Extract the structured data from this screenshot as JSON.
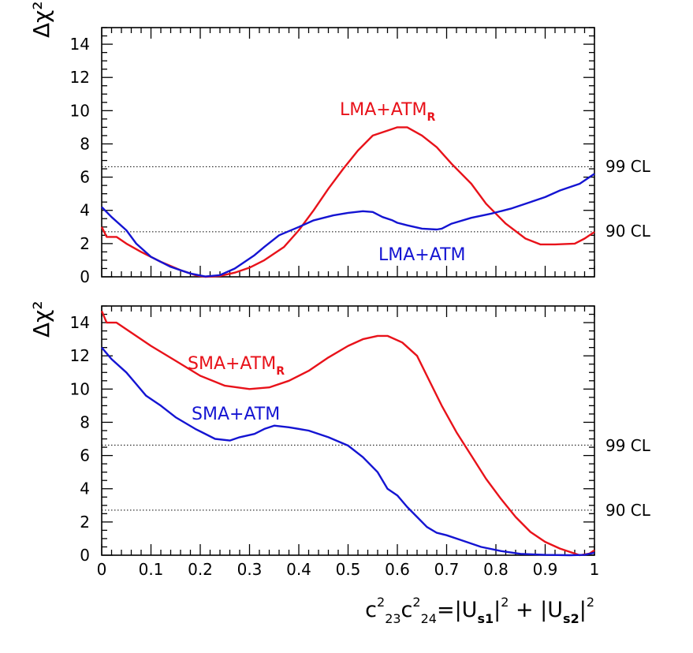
{
  "chart_data": [
    {
      "type": "line",
      "ylabel": "Δχ²",
      "xlim": [
        0,
        1
      ],
      "ylim": [
        0,
        15
      ],
      "y_ticks": [
        "0",
        "2",
        "4",
        "6",
        "8",
        "10",
        "12",
        "14"
      ],
      "reference_lines": [
        {
          "label": "99 CL",
          "y": 6.63
        },
        {
          "label": "90 CL",
          "y": 2.71
        }
      ],
      "series": [
        {
          "name": "LMA+ATM_R",
          "label_main": "LMA+ATM",
          "label_sub": "R",
          "color": "#e8121a",
          "points": [
            [
              0,
              3.0
            ],
            [
              0.01,
              2.4
            ],
            [
              0.03,
              2.4
            ],
            [
              0.05,
              2.0
            ],
            [
              0.08,
              1.5
            ],
            [
              0.12,
              0.9
            ],
            [
              0.16,
              0.4
            ],
            [
              0.19,
              0.1
            ],
            [
              0.21,
              0.0
            ],
            [
              0.24,
              0.05
            ],
            [
              0.27,
              0.25
            ],
            [
              0.3,
              0.55
            ],
            [
              0.33,
              1.0
            ],
            [
              0.37,
              1.8
            ],
            [
              0.4,
              2.8
            ],
            [
              0.43,
              4.0
            ],
            [
              0.46,
              5.3
            ],
            [
              0.49,
              6.5
            ],
            [
              0.52,
              7.6
            ],
            [
              0.55,
              8.5
            ],
            [
              0.58,
              8.8
            ],
            [
              0.6,
              9.0
            ],
            [
              0.62,
              9.0
            ],
            [
              0.65,
              8.5
            ],
            [
              0.68,
              7.8
            ],
            [
              0.71,
              6.8
            ],
            [
              0.75,
              5.6
            ],
            [
              0.78,
              4.4
            ],
            [
              0.82,
              3.2
            ],
            [
              0.86,
              2.3
            ],
            [
              0.89,
              1.95
            ],
            [
              0.92,
              1.95
            ],
            [
              0.96,
              2.0
            ],
            [
              0.98,
              2.3
            ],
            [
              1.0,
              2.7
            ]
          ]
        },
        {
          "name": "LMA+ATM",
          "label_main": "LMA+ATM",
          "label_sub": "",
          "color": "#1414d2",
          "points": [
            [
              0,
              4.2
            ],
            [
              0.02,
              3.6
            ],
            [
              0.05,
              2.8
            ],
            [
              0.07,
              2.0
            ],
            [
              0.1,
              1.2
            ],
            [
              0.14,
              0.6
            ],
            [
              0.18,
              0.2
            ],
            [
              0.21,
              0.02
            ],
            [
              0.24,
              0.1
            ],
            [
              0.27,
              0.5
            ],
            [
              0.31,
              1.3
            ],
            [
              0.33,
              1.8
            ],
            [
              0.36,
              2.5
            ],
            [
              0.4,
              3.0
            ],
            [
              0.43,
              3.4
            ],
            [
              0.47,
              3.7
            ],
            [
              0.5,
              3.85
            ],
            [
              0.53,
              3.95
            ],
            [
              0.55,
              3.9
            ],
            [
              0.57,
              3.6
            ],
            [
              0.59,
              3.4
            ],
            [
              0.6,
              3.25
            ],
            [
              0.62,
              3.1
            ],
            [
              0.65,
              2.9
            ],
            [
              0.68,
              2.85
            ],
            [
              0.69,
              2.9
            ],
            [
              0.71,
              3.2
            ],
            [
              0.75,
              3.55
            ],
            [
              0.79,
              3.8
            ],
            [
              0.83,
              4.1
            ],
            [
              0.87,
              4.5
            ],
            [
              0.9,
              4.8
            ],
            [
              0.93,
              5.2
            ],
            [
              0.97,
              5.6
            ],
            [
              1.0,
              6.2
            ]
          ]
        }
      ]
    },
    {
      "type": "line",
      "ylabel": "Δχ²",
      "xlim": [
        0,
        1
      ],
      "ylim": [
        0,
        15
      ],
      "x_ticks": [
        "0",
        "0.1",
        "0.2",
        "0.3",
        "0.4",
        "0.5",
        "0.6",
        "0.7",
        "0.8",
        "0.9",
        "1"
      ],
      "xlabel": {
        "c1": "c",
        "c1_sup": "2",
        "c1_sub": "23",
        "c2": "c",
        "c2_sup": "2",
        "c2_sub": "24",
        "eq": "=|U",
        "s1": "s1",
        "mid": "|",
        "sq1": "2",
        "plus": " + |U",
        "s2": "s2",
        "end": "|",
        "sq2": "2"
      },
      "reference_lines": [
        {
          "label": "99 CL",
          "y": 6.63
        },
        {
          "label": "90 CL",
          "y": 2.71
        }
      ],
      "series": [
        {
          "name": "SMA+ATM_R",
          "label_main": "SMA+ATM",
          "label_sub": "R",
          "color": "#e8121a",
          "points": [
            [
              0,
              14.7
            ],
            [
              0.01,
              14.0
            ],
            [
              0.03,
              14.0
            ],
            [
              0.06,
              13.4
            ],
            [
              0.1,
              12.6
            ],
            [
              0.15,
              11.7
            ],
            [
              0.2,
              10.8
            ],
            [
              0.25,
              10.2
            ],
            [
              0.3,
              10.0
            ],
            [
              0.34,
              10.1
            ],
            [
              0.38,
              10.5
            ],
            [
              0.42,
              11.1
            ],
            [
              0.46,
              11.9
            ],
            [
              0.5,
              12.6
            ],
            [
              0.53,
              13.0
            ],
            [
              0.56,
              13.2
            ],
            [
              0.58,
              13.2
            ],
            [
              0.61,
              12.8
            ],
            [
              0.64,
              12.0
            ],
            [
              0.66,
              10.8
            ],
            [
              0.69,
              9.0
            ],
            [
              0.72,
              7.4
            ],
            [
              0.75,
              6.0
            ],
            [
              0.78,
              4.6
            ],
            [
              0.81,
              3.4
            ],
            [
              0.84,
              2.3
            ],
            [
              0.87,
              1.4
            ],
            [
              0.9,
              0.8
            ],
            [
              0.93,
              0.4
            ],
            [
              0.96,
              0.1
            ],
            [
              0.97,
              0.0
            ],
            [
              0.99,
              0.1
            ],
            [
              1.0,
              0.3
            ]
          ]
        },
        {
          "name": "SMA+ATM",
          "label_main": "SMA+ATM",
          "label_sub": "",
          "color": "#1414d2",
          "points": [
            [
              0,
              12.5
            ],
            [
              0.02,
              11.8
            ],
            [
              0.05,
              11.0
            ],
            [
              0.07,
              10.3
            ],
            [
              0.09,
              9.6
            ],
            [
              0.12,
              9.0
            ],
            [
              0.15,
              8.3
            ],
            [
              0.19,
              7.6
            ],
            [
              0.23,
              7.0
            ],
            [
              0.26,
              6.9
            ],
            [
              0.28,
              7.1
            ],
            [
              0.31,
              7.3
            ],
            [
              0.33,
              7.6
            ],
            [
              0.35,
              7.8
            ],
            [
              0.38,
              7.7
            ],
            [
              0.42,
              7.5
            ],
            [
              0.46,
              7.1
            ],
            [
              0.5,
              6.6
            ],
            [
              0.53,
              5.9
            ],
            [
              0.56,
              5.0
            ],
            [
              0.58,
              4.0
            ],
            [
              0.6,
              3.6
            ],
            [
              0.62,
              2.9
            ],
            [
              0.64,
              2.3
            ],
            [
              0.66,
              1.7
            ],
            [
              0.68,
              1.35
            ],
            [
              0.7,
              1.2
            ],
            [
              0.73,
              0.9
            ],
            [
              0.77,
              0.5
            ],
            [
              0.81,
              0.25
            ],
            [
              0.85,
              0.08
            ],
            [
              0.9,
              0.02
            ],
            [
              0.95,
              0.0
            ],
            [
              0.98,
              0.02
            ],
            [
              1.0,
              0.15
            ]
          ]
        }
      ]
    }
  ]
}
